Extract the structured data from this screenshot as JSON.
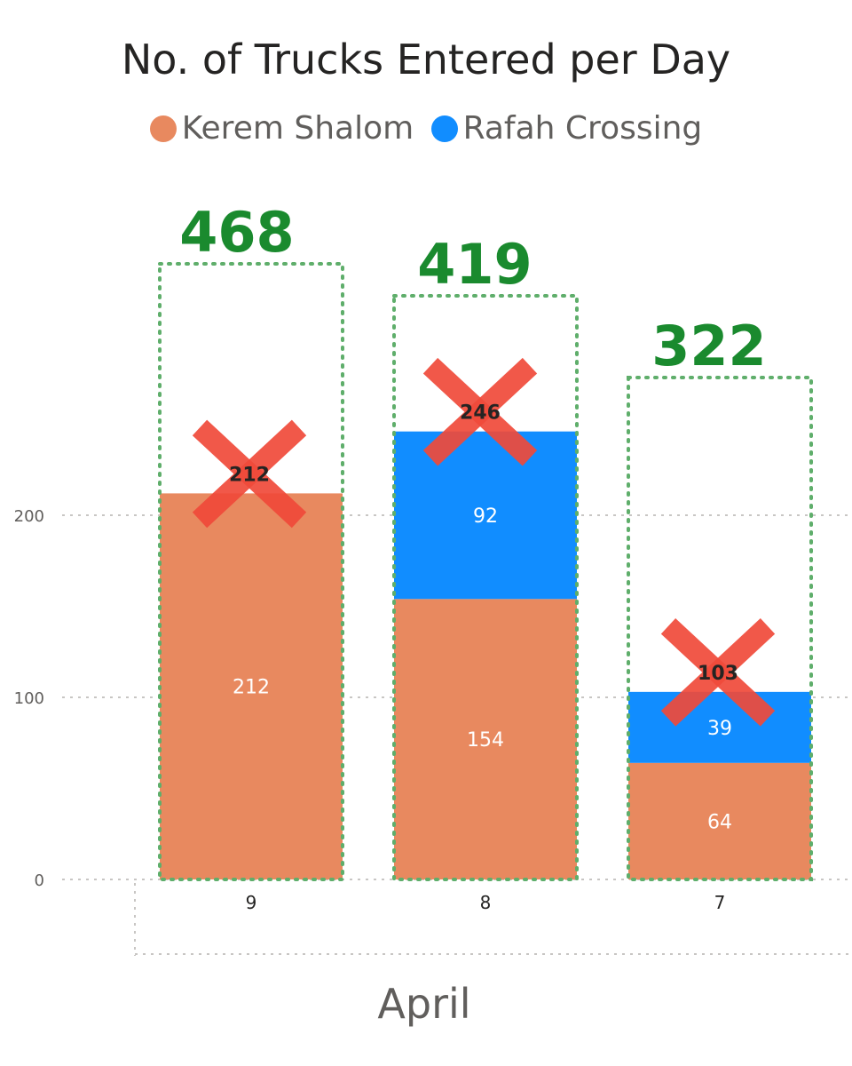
{
  "chart_data": {
    "type": "bar",
    "stacked": true,
    "title": "No. of Trucks Entered per Day",
    "xlabel": "April",
    "ylabel": "",
    "categories": [
      "9",
      "8",
      "7"
    ],
    "series": [
      {
        "name": "Kerem Shalom",
        "color": "#e8895f",
        "values": [
          212,
          154,
          64
        ],
        "labels": [
          "212",
          "154",
          "64"
        ]
      },
      {
        "name": "Rafah Crossing",
        "color": "#118dff",
        "values": [
          0,
          92,
          39
        ],
        "labels": [
          "",
          "92",
          "39"
        ]
      }
    ],
    "totals": [
      "212",
      "246",
      "103"
    ],
    "corrected_totals": {
      "values": [
        468,
        419,
        322
      ],
      "labels": [
        "468",
        "419",
        "322"
      ],
      "color": "#1a8a2e",
      "box_color": "#5fae6b"
    },
    "strike_color": "#f04a3a",
    "yticks": [
      {
        "value": 0,
        "label": "0"
      },
      {
        "value": 100,
        "label": "100"
      },
      {
        "value": 200,
        "label": "200"
      }
    ],
    "ylim": [
      0,
      468
    ],
    "grid": true,
    "legend_position": "top-center"
  }
}
